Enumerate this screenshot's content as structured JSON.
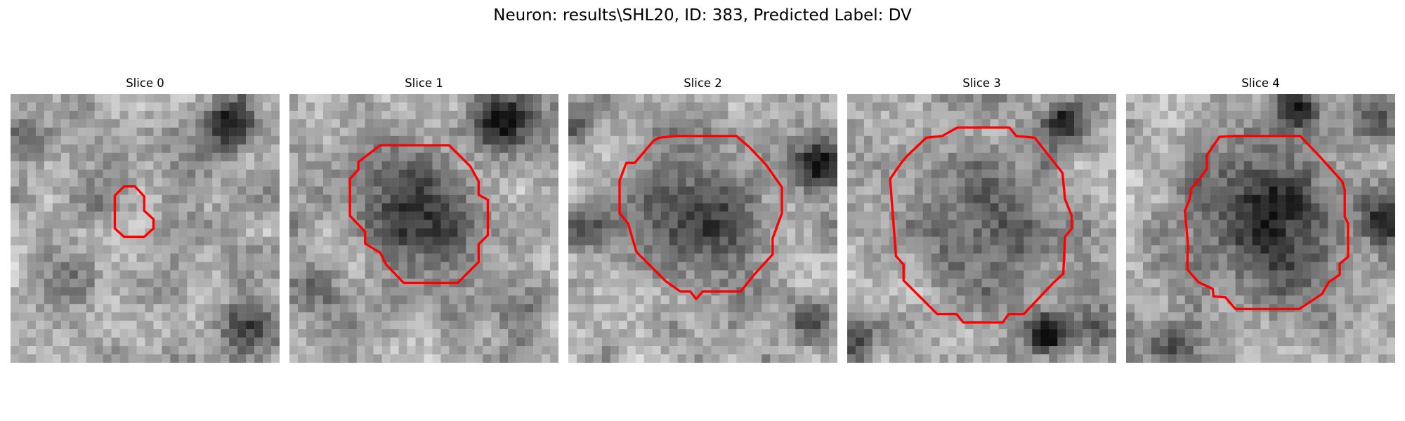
{
  "figure": {
    "title": "Neuron: results\\SHL20, ID: 383, Predicted Label: DV"
  },
  "panels": [
    {
      "title": "Slice 0",
      "contour_color": "#ff0000",
      "colormap": "gray"
    },
    {
      "title": "Slice 1",
      "contour_color": "#ff0000",
      "colormap": "gray"
    },
    {
      "title": "Slice 2",
      "contour_color": "#ff0000",
      "colormap": "gray"
    },
    {
      "title": "Slice 3",
      "contour_color": "#ff0000",
      "colormap": "gray"
    },
    {
      "title": "Slice 4",
      "contour_color": "#ff0000",
      "colormap": "gray"
    }
  ]
}
